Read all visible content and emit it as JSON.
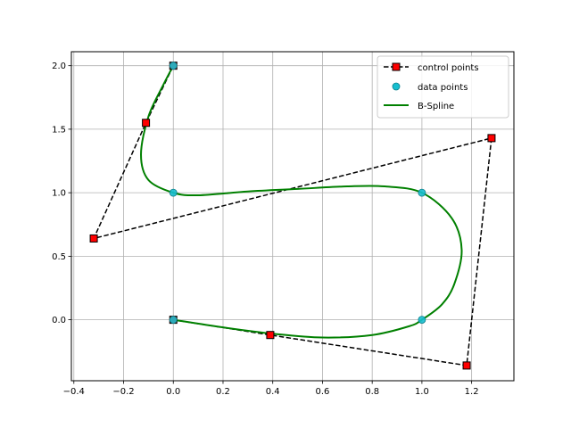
{
  "chart_data": {
    "type": "line",
    "title": "",
    "xlabel": "",
    "ylabel": "",
    "xlim": [
      -0.41,
      1.37
    ],
    "ylim": [
      -0.48,
      2.11
    ],
    "grid": true,
    "legend_position": "top-right",
    "xticks": [
      -0.4,
      -0.2,
      0.0,
      0.2,
      0.4,
      0.6,
      0.8,
      1.0,
      1.2
    ],
    "xtick_labels": [
      "−0.4",
      "−0.2",
      "0.0",
      "0.2",
      "0.4",
      "0.6",
      "0.8",
      "1.0",
      "1.2"
    ],
    "yticks": [
      0.0,
      0.5,
      1.0,
      1.5,
      2.0
    ],
    "ytick_labels": [
      "0.0",
      "0.5",
      "1.0",
      "1.5",
      "2.0"
    ],
    "series": [
      {
        "name": "control points",
        "style": "dashed-line-square-markers",
        "color": "#000000",
        "marker_color": "#ff0000",
        "x": [
          0.0,
          0.39,
          1.18,
          1.28,
          -0.32,
          -0.11,
          0.0
        ],
        "y": [
          0.0,
          -0.12,
          -0.36,
          1.43,
          0.64,
          1.55,
          2.0
        ]
      },
      {
        "name": "data points",
        "style": "circle-markers",
        "color": "#17becf",
        "x": [
          0.0,
          1.0,
          1.0,
          0.0,
          0.0
        ],
        "y": [
          0.0,
          0.0,
          1.0,
          1.0,
          2.0
        ]
      },
      {
        "name": "B-Spline",
        "style": "solid-line",
        "color": "#008000",
        "x": [
          0.0,
          0.2,
          0.4,
          0.6,
          0.8,
          0.95,
          1.0,
          1.08,
          1.13,
          1.16,
          1.12,
          1.0,
          0.85,
          0.7,
          0.5,
          0.3,
          0.1,
          0.0,
          -0.1,
          -0.13,
          -0.1,
          -0.04,
          0.0
        ],
        "y": [
          0.0,
          -0.06,
          -0.11,
          -0.14,
          -0.12,
          -0.05,
          0.0,
          0.12,
          0.28,
          0.55,
          0.8,
          1.0,
          1.05,
          1.05,
          1.03,
          1.01,
          0.98,
          1.0,
          1.1,
          1.3,
          1.6,
          1.85,
          2.0
        ]
      }
    ]
  }
}
